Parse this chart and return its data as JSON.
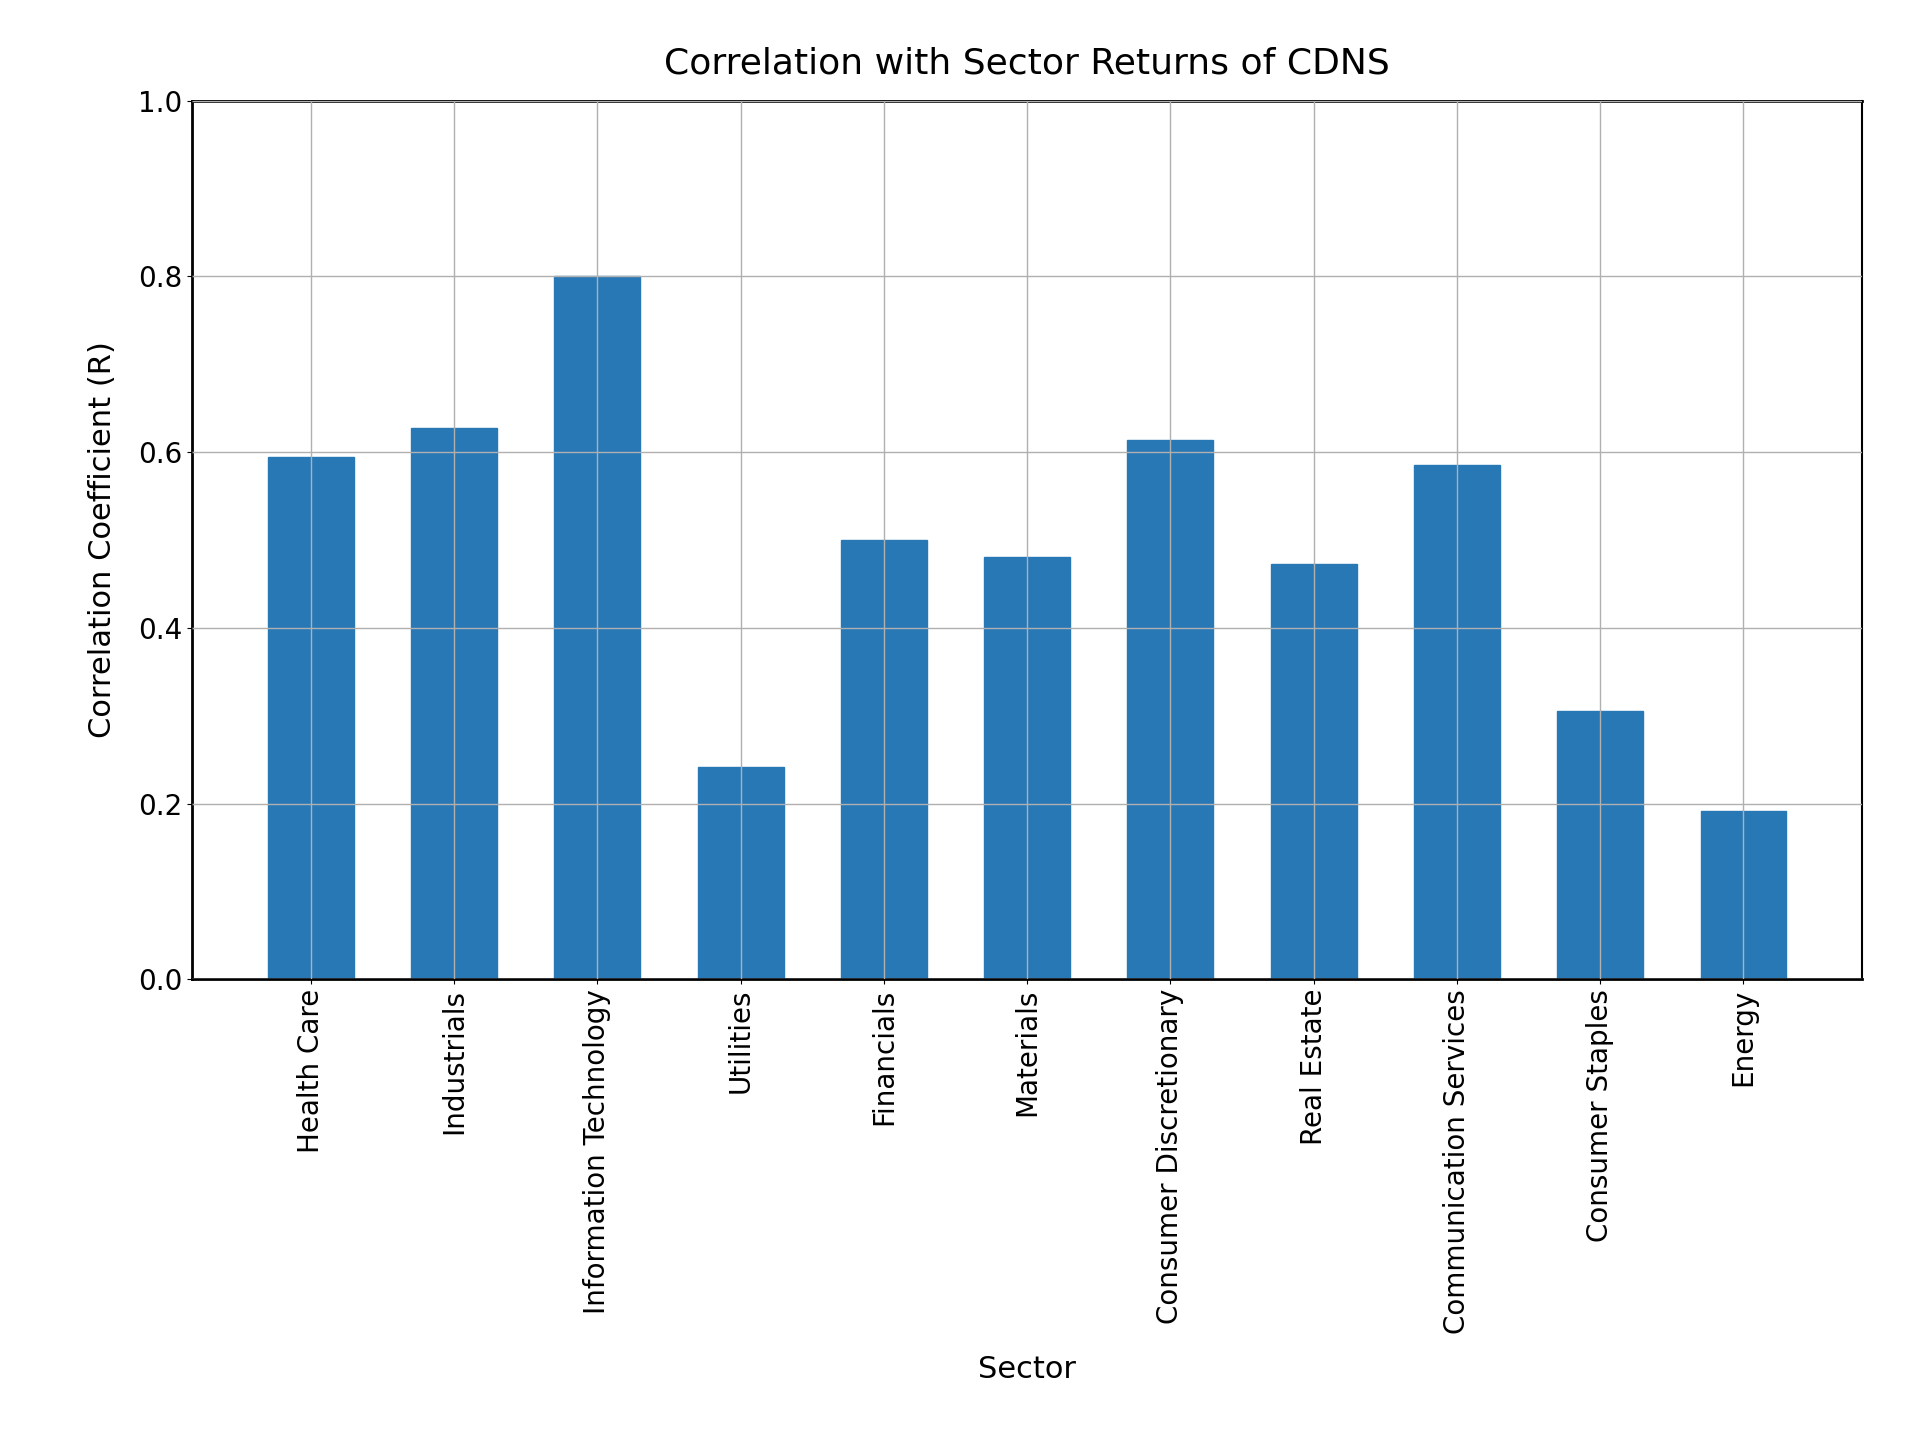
{
  "title": "Correlation with Sector Returns of CDNS",
  "xlabel": "Sector",
  "ylabel": "Correlation Coefficient (R)",
  "categories": [
    "Health Care",
    "Industrials",
    "Information Technology",
    "Utilities",
    "Financials",
    "Materials",
    "Consumer Discretionary",
    "Real Estate",
    "Communication Services",
    "Consumer Staples",
    "Energy"
  ],
  "values": [
    0.594,
    0.627,
    0.8,
    0.242,
    0.5,
    0.481,
    0.614,
    0.473,
    0.585,
    0.305,
    0.192
  ],
  "bar_color": "#2878b5",
  "ylim": [
    0.0,
    1.0
  ],
  "yticks": [
    0.0,
    0.2,
    0.4,
    0.6,
    0.8,
    1.0
  ],
  "title_fontsize": 26,
  "label_fontsize": 22,
  "tick_fontsize": 20,
  "background_color": "#ffffff",
  "grid_color": "#b0b0b0"
}
